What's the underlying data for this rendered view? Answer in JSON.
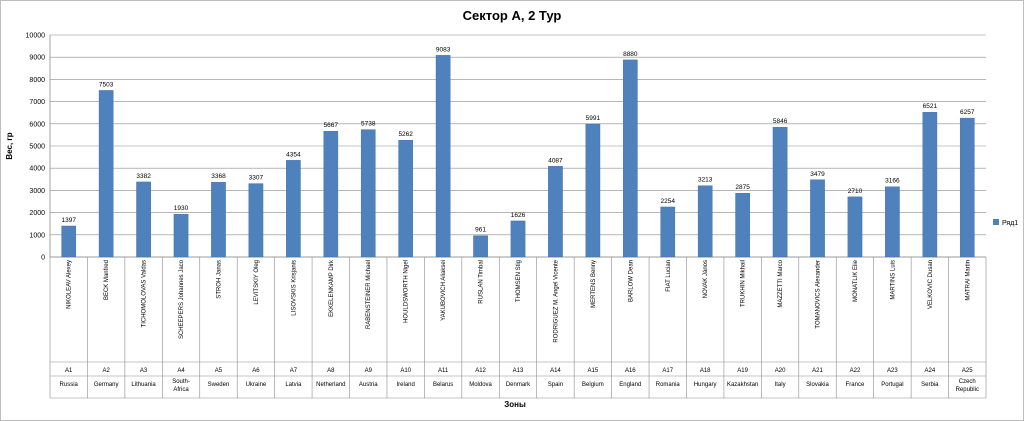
{
  "chart_data": {
    "type": "bar",
    "title": "Сектор А, 2 Тур",
    "ylabel": "Вес, гр",
    "xlabel": "Зоны",
    "ylim": [
      0,
      10000
    ],
    "yticks": [
      0,
      1000,
      2000,
      3000,
      4000,
      5000,
      6000,
      7000,
      8000,
      9000,
      10000
    ],
    "grid": true,
    "legend_position": "right",
    "bar_color": "#4F81BD",
    "categories": [
      {
        "name": "NIKOLEAV Alexey",
        "zone": "A1",
        "country": "Russia"
      },
      {
        "name": "BECK Manfred",
        "zone": "A2",
        "country": "Germany"
      },
      {
        "name": "TICHOMOLOVAS Valdas",
        "zone": "A3",
        "country": "Lithuania"
      },
      {
        "name": "SCHEEPERS Johannes Jaco",
        "zone": "A4",
        "country": "South-Africa"
      },
      {
        "name": "STROH Janas",
        "zone": "A5",
        "country": "Sweden"
      },
      {
        "name": "LEVITSKIY Oleg",
        "zone": "A6",
        "country": "Ukraine"
      },
      {
        "name": "LISOVSKIS Krisjanis",
        "zone": "A7",
        "country": "Latvia"
      },
      {
        "name": "EKKELENKAMP Dirk",
        "zone": "A8",
        "country": "Netherland"
      },
      {
        "name": "RABENSTEINER Michael",
        "zone": "A9",
        "country": "Austria"
      },
      {
        "name": "HOULDSWORTH Nigel",
        "zone": "A10",
        "country": "Ireland"
      },
      {
        "name": "YAKUBOVICH Aliaksei",
        "zone": "A11",
        "country": "Belarus"
      },
      {
        "name": "RUSLAN Timbal",
        "zone": "A12",
        "country": "Moldova"
      },
      {
        "name": "THOMSEN Stig",
        "zone": "A13",
        "country": "Denmark"
      },
      {
        "name": "RODRIGUEZ M. Angel Vicente",
        "zone": "A14",
        "country": "Spain"
      },
      {
        "name": "MERTENS Benny",
        "zone": "A15",
        "country": "Belgium"
      },
      {
        "name": "BARLOW Dean",
        "zone": "A16",
        "country": "England"
      },
      {
        "name": "FIAT Lucian",
        "zone": "A17",
        "country": "Romania"
      },
      {
        "name": "NOVAK János",
        "zone": "A18",
        "country": "Hungary"
      },
      {
        "name": "TRUKHIN Mikhail",
        "zone": "A19",
        "country": "Kazakhstan"
      },
      {
        "name": "MAZZETTI Marco",
        "zone": "A20",
        "country": "Italy"
      },
      {
        "name": "TOMANOVICS Alexander",
        "zone": "A21",
        "country": "Slovakia"
      },
      {
        "name": "MONATLIK Elie",
        "zone": "A22",
        "country": "France"
      },
      {
        "name": "MARTINS Luis",
        "zone": "A23",
        "country": "Portugal"
      },
      {
        "name": "VELKOVIC Dusan",
        "zone": "A24",
        "country": "Serbia"
      },
      {
        "name": "MATRAI Martin",
        "zone": "A25",
        "country": "Czech Republic"
      }
    ],
    "series": [
      {
        "name": "Ряд1",
        "values": [
          1397,
          7503,
          3382,
          1930,
          3368,
          3307,
          4354,
          5667,
          5738,
          5262,
          9083,
          961,
          1626,
          4087,
          5991,
          8880,
          2254,
          3213,
          2875,
          5846,
          3479,
          2710,
          3166,
          6521,
          6257
        ]
      }
    ]
  }
}
